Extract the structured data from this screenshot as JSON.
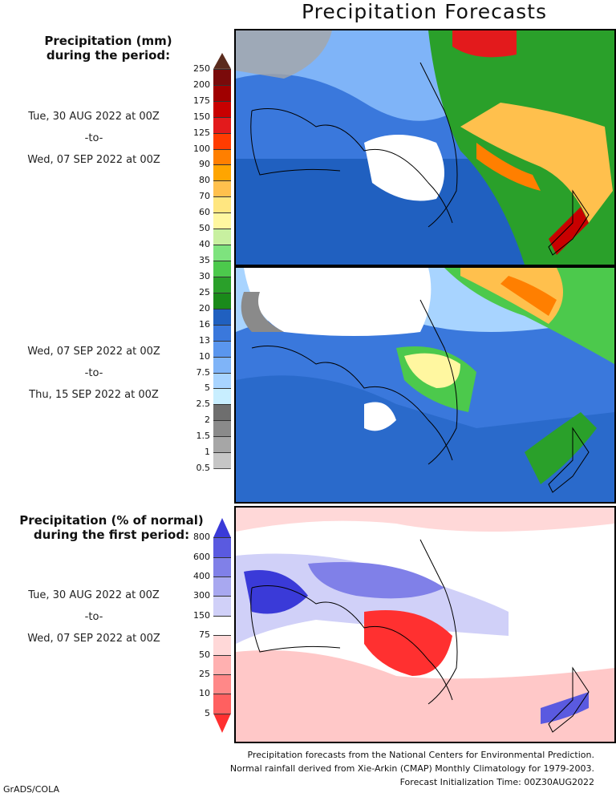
{
  "title": "Precipitation Forecasts",
  "legend_mm": {
    "title_line1": "Precipitation (mm)",
    "title_line2": "during the period:",
    "ticks": [
      "250",
      "200",
      "175",
      "150",
      "125",
      "100",
      "90",
      "80",
      "70",
      "60",
      "50",
      "40",
      "35",
      "30",
      "25",
      "20",
      "16",
      "13",
      "10",
      "7.5",
      "5",
      "2.5",
      "2",
      "1.5",
      "1",
      "0.5"
    ],
    "colors": [
      "#5b2c1e",
      "#7a0a0a",
      "#a00000",
      "#c80000",
      "#e31a1c",
      "#ff3c00",
      "#ff7f00",
      "#ffa500",
      "#ffc04d",
      "#ffe680",
      "#fff7a0",
      "#c8f0a0",
      "#7ee37e",
      "#4cc94c",
      "#2aa02a",
      "#1a8a1a",
      "#2060c0",
      "#3a78dc",
      "#5a96ee",
      "#7fb4f8",
      "#a8d4ff",
      "#c8eeff",
      "#6e6e6e",
      "#8a8a8a",
      "#a6a6a6",
      "#c6c6c6",
      "#ffffff"
    ]
  },
  "period1": {
    "start": "Tue, 30 AUG 2022 at 00Z",
    "sep": "-to-",
    "end": "Wed, 07 SEP 2022 at 00Z"
  },
  "period2": {
    "start": "Wed, 07 SEP 2022 at 00Z",
    "sep": "-to-",
    "end": "Thu, 15 SEP 2022 at 00Z"
  },
  "legend_pct": {
    "title_line1": "Precipitation (% of normal)",
    "title_line2": "during the first period:",
    "ticks": [
      "800",
      "600",
      "400",
      "300",
      "150",
      "75",
      "50",
      "25",
      "10",
      "5"
    ],
    "colors": [
      "#3a3ad8",
      "#5a5ae0",
      "#8080e8",
      "#a8a8f0",
      "#d0d0f8",
      "#ffffff",
      "#ffd8d8",
      "#ffb0b0",
      "#ff8888",
      "#ff6060",
      "#ff3030"
    ]
  },
  "period3": {
    "start": "Tue, 30 AUG 2022 at 00Z",
    "sep": "-to-",
    "end": "Wed, 07 SEP 2022 at 00Z"
  },
  "footer": {
    "line1": "Precipitation forecasts from the National Centers for Environmental Prediction.",
    "line2": "Normal rainfall derived from Xie-Arkin (CMAP) Monthly Climatology for 1979-2003.",
    "line3": "Forecast Initialization Time: 00Z30AUG2022"
  },
  "credit": "GrADS/COLA"
}
